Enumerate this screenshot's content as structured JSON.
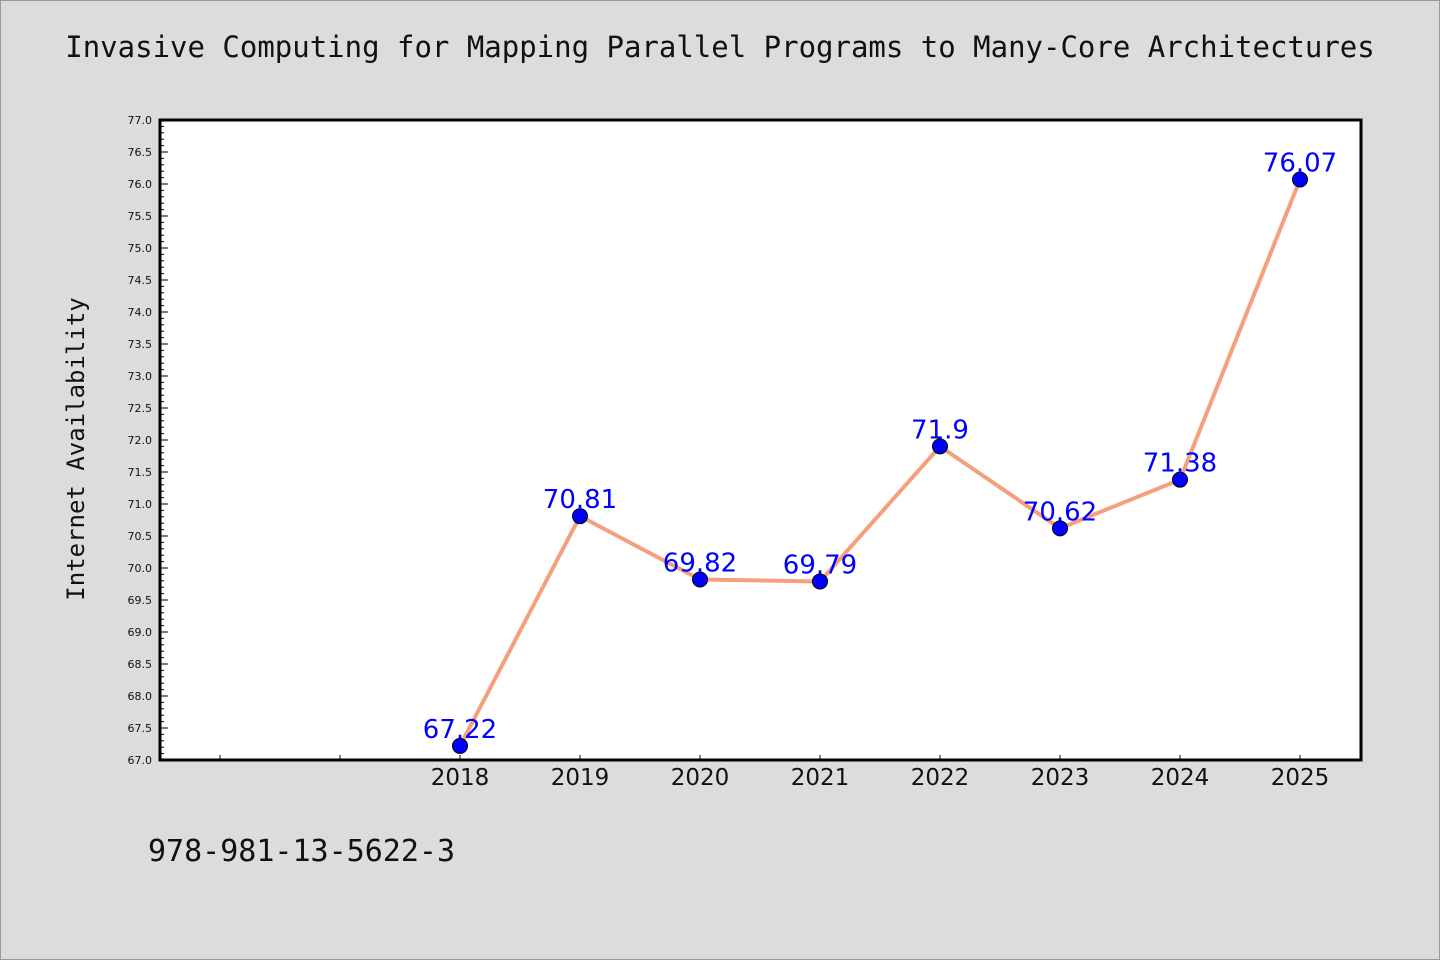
{
  "title": "Invasive Computing for Mapping Parallel Programs to Many-Core Architectures",
  "footer_text": "978-981-13-5622-3",
  "colors": {
    "background": "#dcdcdc",
    "plot_background": "#ffffff",
    "line": "#f4a07e",
    "marker": "#0000ff",
    "data_label": "#0000ff"
  },
  "chart_data": {
    "type": "line",
    "title": "Invasive Computing for Mapping Parallel Programs to Many-Core Architectures",
    "xlabel": "",
    "ylabel": "Internet Availability",
    "x_ticks": [
      "",
      "",
      "2018",
      "2019",
      "2020",
      "2021",
      "2022",
      "2023",
      "2024",
      "2025"
    ],
    "x": [
      "2018",
      "2019",
      "2020",
      "2021",
      "2022",
      "2023",
      "2024",
      "2025"
    ],
    "series": [
      {
        "values": [
          67.22,
          70.81,
          69.82,
          69.79,
          71.9,
          70.62,
          71.38,
          76.07
        ],
        "labels": [
          "67.22",
          "70.81",
          "69.82",
          "69.79",
          "71.9",
          "70.62",
          "71.38",
          "76.07"
        ]
      }
    ],
    "ylim": [
      67.0,
      77.0
    ],
    "y_major_step": 0.5,
    "y_tick_labels": [
      "67.0",
      "67.5",
      "68.0",
      "68.5",
      "69.0",
      "69.5",
      "70.0",
      "70.5",
      "71.0",
      "71.5",
      "72.0",
      "72.5",
      "73.0",
      "73.5",
      "74.0",
      "74.5",
      "75.0",
      "75.5",
      "76.0",
      "76.5",
      "77.0"
    ],
    "grid": false,
    "legend": "none"
  }
}
